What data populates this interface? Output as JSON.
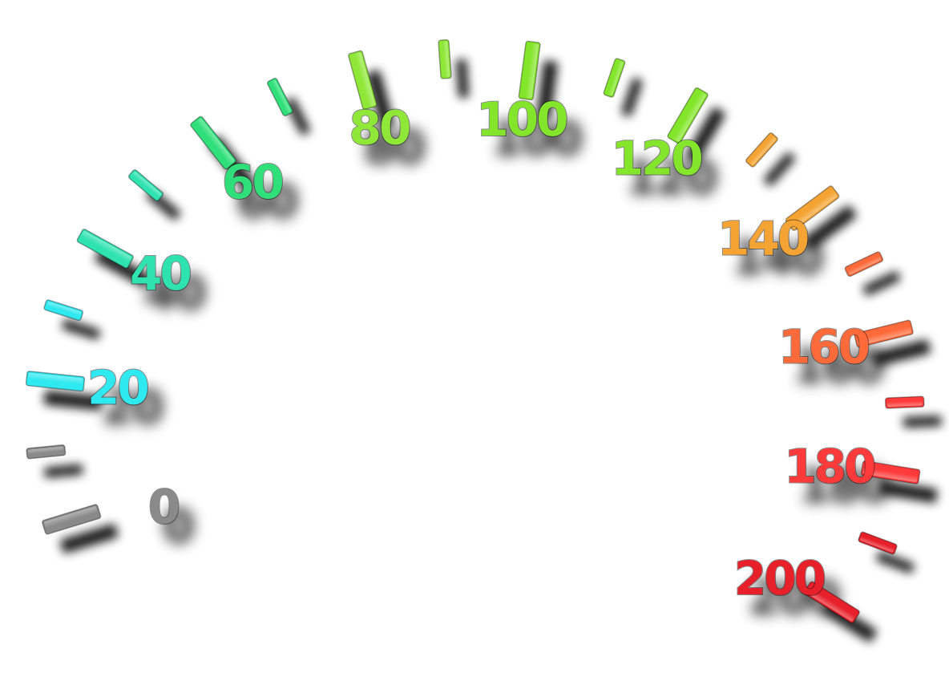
{
  "gauge": {
    "type": "speedometer-scale",
    "min": 0,
    "max": 200,
    "major_step": 20,
    "minor_step": 10,
    "labels": [
      "0",
      "20",
      "40",
      "60",
      "80",
      "100",
      "120",
      "140",
      "160",
      "180",
      "200"
    ],
    "colors": {
      "0": "#8a8a8a",
      "20": "#2ee9f0",
      "40": "#2ee3b0",
      "60": "#2fe07a",
      "80": "#8fe838",
      "100": "#84e62a",
      "120": "#84e62a",
      "140": "#f5a433",
      "160": "#ff6a3a",
      "180": "#ff3a3a",
      "200": "#e8202a"
    }
  }
}
